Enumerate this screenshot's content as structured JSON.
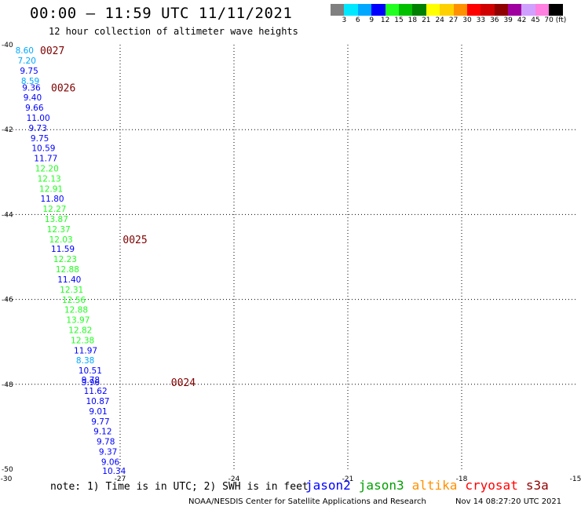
{
  "header": {
    "title": "00:00 – 11:59 UTC 11/11/2021",
    "subtitle": "12 hour collection of altimeter wave heights"
  },
  "legend": {
    "colors": [
      "#808080",
      "#00e8ff",
      "#00a8ff",
      "#0000ff",
      "#20ff20",
      "#00c000",
      "#008000",
      "#ffff00",
      "#ffd000",
      "#ff9000",
      "#ff0000",
      "#d00000",
      "#900000",
      "#a000a0",
      "#d0a0ff",
      "#ff80e0",
      "#000000"
    ],
    "labels": [
      "3",
      "6",
      "9",
      "12",
      "15",
      "18",
      "21",
      "24",
      "27",
      "30",
      "33",
      "36",
      "39",
      "42",
      "45",
      "70 (ft)"
    ]
  },
  "map": {
    "lon_min": -30,
    "lon_max": -15,
    "lat_min": -50,
    "lat_max": -40,
    "lon_ticks": [
      -30,
      -27,
      -24,
      -21,
      -18,
      -15
    ],
    "lat_ticks": [
      -40,
      -42,
      -44,
      -46,
      -48,
      -50
    ],
    "lon_tick_labels": [
      "-30",
      "-27",
      "-24",
      "-21",
      "-18",
      "-15"
    ],
    "lat_tick_labels": [
      "-40",
      "-42",
      "-44",
      "-46",
      "-48",
      "-50"
    ],
    "grid": true
  },
  "observations": [
    {
      "lon": -29.76,
      "lat": -40.13,
      "value": "8.60",
      "color": "#00a8ff"
    },
    {
      "lon": -29.7,
      "lat": -40.37,
      "value": "7.20",
      "color": "#00a8ff"
    },
    {
      "lon": -29.64,
      "lat": -40.61,
      "value": "9.75",
      "color": "#0000ff"
    },
    {
      "lon": -29.61,
      "lat": -40.85,
      "value": "8.59",
      "color": "#00a8ff"
    },
    {
      "lon": -29.58,
      "lat": -41.01,
      "value": "9.36",
      "color": "#0000ff"
    },
    {
      "lon": -29.55,
      "lat": -41.24,
      "value": "9.40",
      "color": "#0000ff"
    },
    {
      "lon": -29.5,
      "lat": -41.48,
      "value": "9.66",
      "color": "#0000ff"
    },
    {
      "lon": -29.47,
      "lat": -41.72,
      "value": "11.00",
      "color": "#0000ff"
    },
    {
      "lon": -29.41,
      "lat": -41.96,
      "value": "9.73",
      "color": "#0000ff"
    },
    {
      "lon": -29.36,
      "lat": -42.2,
      "value": "9.75",
      "color": "#0000ff"
    },
    {
      "lon": -29.33,
      "lat": -42.43,
      "value": "10.59",
      "color": "#0000ff"
    },
    {
      "lon": -29.27,
      "lat": -42.67,
      "value": "11.77",
      "color": "#0000ff"
    },
    {
      "lon": -29.24,
      "lat": -42.91,
      "value": "12.20",
      "color": "#20ff20"
    },
    {
      "lon": -29.18,
      "lat": -43.15,
      "value": "12.13",
      "color": "#20ff20"
    },
    {
      "lon": -29.13,
      "lat": -43.39,
      "value": "12.91",
      "color": "#20ff20"
    },
    {
      "lon": -29.1,
      "lat": -43.62,
      "value": "11.80",
      "color": "#0000ff"
    },
    {
      "lon": -29.04,
      "lat": -43.86,
      "value": "12.27",
      "color": "#20ff20"
    },
    {
      "lon": -28.99,
      "lat": -44.1,
      "value": "13.87",
      "color": "#20ff20"
    },
    {
      "lon": -28.93,
      "lat": -44.34,
      "value": "12.37",
      "color": "#20ff20"
    },
    {
      "lon": -28.87,
      "lat": -44.58,
      "value": "12.03",
      "color": "#20ff20"
    },
    {
      "lon": -28.82,
      "lat": -44.81,
      "value": "11.59",
      "color": "#0000ff"
    },
    {
      "lon": -28.76,
      "lat": -45.05,
      "value": "12.23",
      "color": "#20ff20"
    },
    {
      "lon": -28.7,
      "lat": -45.29,
      "value": "12.88",
      "color": "#20ff20"
    },
    {
      "lon": -28.65,
      "lat": -45.53,
      "value": "11.40",
      "color": "#0000ff"
    },
    {
      "lon": -28.59,
      "lat": -45.77,
      "value": "12.31",
      "color": "#20ff20"
    },
    {
      "lon": -28.53,
      "lat": -46.01,
      "value": "12.56",
      "color": "#20ff20"
    },
    {
      "lon": -28.47,
      "lat": -46.24,
      "value": "12.88",
      "color": "#20ff20"
    },
    {
      "lon": -28.42,
      "lat": -46.48,
      "value": "13.97",
      "color": "#20ff20"
    },
    {
      "lon": -28.36,
      "lat": -46.72,
      "value": "12.82",
      "color": "#20ff20"
    },
    {
      "lon": -28.3,
      "lat": -46.96,
      "value": "12.38",
      "color": "#20ff20"
    },
    {
      "lon": -28.22,
      "lat": -47.2,
      "value": "11.97",
      "color": "#0000ff"
    },
    {
      "lon": -28.16,
      "lat": -47.43,
      "value": "8.38",
      "color": "#00a8ff"
    },
    {
      "lon": -28.1,
      "lat": -47.67,
      "value": "10.51",
      "color": "#0000ff"
    },
    {
      "lon": -28.02,
      "lat": -47.89,
      "value": "9.78",
      "color": "#0000ff"
    },
    {
      "lon": -28.02,
      "lat": -47.95,
      "value": "9.96",
      "color": "#0000ff"
    },
    {
      "lon": -27.96,
      "lat": -48.15,
      "value": "11.62",
      "color": "#0000ff"
    },
    {
      "lon": -27.9,
      "lat": -48.39,
      "value": "10.87",
      "color": "#0000ff"
    },
    {
      "lon": -27.82,
      "lat": -48.63,
      "value": "9.01",
      "color": "#0000ff"
    },
    {
      "lon": -27.76,
      "lat": -48.87,
      "value": "9.77",
      "color": "#0000ff"
    },
    {
      "lon": -27.7,
      "lat": -49.1,
      "value": "9.12",
      "color": "#0000ff"
    },
    {
      "lon": -27.62,
      "lat": -49.34,
      "value": "9.78",
      "color": "#0000ff"
    },
    {
      "lon": -27.56,
      "lat": -49.58,
      "value": "9.37",
      "color": "#0000ff"
    },
    {
      "lon": -27.5,
      "lat": -49.82,
      "value": "9.06",
      "color": "#0000ff"
    },
    {
      "lon": -27.47,
      "lat": -50.04,
      "value": "10.34",
      "color": "#0000ff"
    }
  ],
  "time_marks": [
    {
      "lon": -29.11,
      "lat": -40.13,
      "label": "0027"
    },
    {
      "lon": -28.82,
      "lat": -41.01,
      "label": "0026"
    },
    {
      "lon": -26.93,
      "lat": -44.58,
      "label": "0025"
    },
    {
      "lon": -25.66,
      "lat": -47.95,
      "label": "0024"
    }
  ],
  "time_mark_color": "#800000",
  "note": "note: 1) Time is in UTC; 2) SWH is in feet",
  "satellites": [
    {
      "name": "jason2",
      "color": "#0000ff"
    },
    {
      "name": "jason3",
      "color": "#00a000"
    },
    {
      "name": "altika",
      "color": "#ff9000"
    },
    {
      "name": "cryosat",
      "color": "#ff0000"
    },
    {
      "name": "s3a",
      "color": "#900000"
    }
  ],
  "footer": {
    "credit": "NOAA/NESDIS Center for Satellite Applications and Research",
    "timestamp": "Nov 14 08:27:20 UTC 2021"
  }
}
